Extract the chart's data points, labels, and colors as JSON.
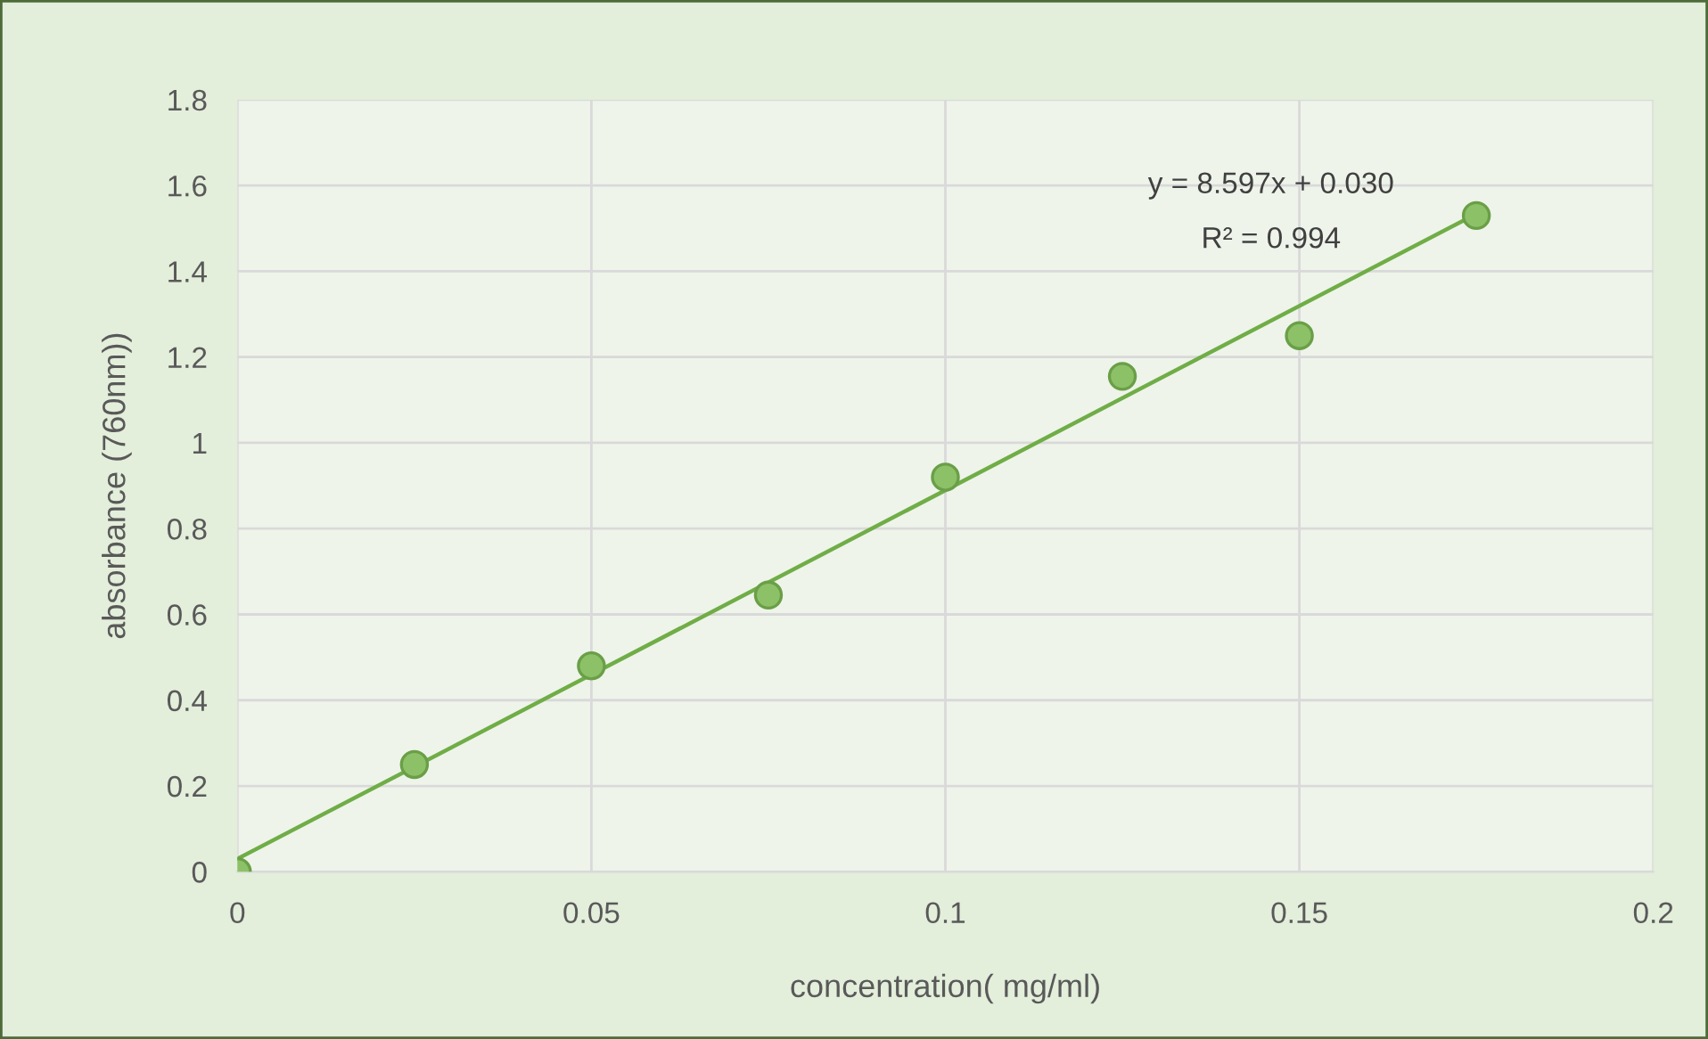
{
  "chart_data": {
    "type": "scatter",
    "xlabel": "concentration( mg/ml)",
    "ylabel": "absorbance (760nm))",
    "x": [
      0,
      0.025,
      0.05,
      0.075,
      0.1,
      0.125,
      0.15,
      0.175
    ],
    "series": [
      {
        "color": "#8cc168",
        "values": [
          0,
          0.25,
          0.48,
          0.645,
          0.92,
          1.155,
          1.25,
          1.53
        ],
        "marker": "circle"
      },
      {
        "type": "line",
        "color": "#70ad47",
        "x": [
          0,
          0.175
        ],
        "values": [
          0.03,
          1.534
        ],
        "marker": "none",
        "line_style": "solid"
      }
    ],
    "annotations": [
      "y = 8.597x + 0.030",
      "R² = 0.994"
    ],
    "xlim": [
      0,
      0.2
    ],
    "xticks": [
      0,
      0.05,
      0.1,
      0.15,
      0.2
    ],
    "ylim": [
      0,
      1.8
    ],
    "yticks": [
      0,
      0.2,
      0.4,
      0.6,
      0.8,
      1,
      1.2,
      1.4,
      1.6,
      1.8
    ],
    "grid": true,
    "legend": false
  }
}
